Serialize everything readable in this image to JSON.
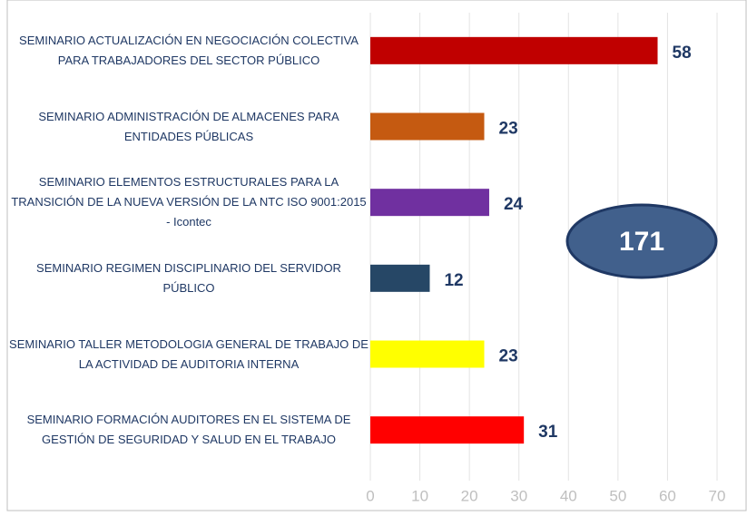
{
  "chart_data": {
    "type": "barh",
    "categories": [
      "SEMINARIO ACTUALIZACIÓN EN NEGOCIACIÓN COLECTIVA PARA TRABAJADORES DEL SECTOR PÚBLICO",
      "SEMINARIO ADMINISTRACIÓN DE ALMACENES PARA ENTIDADES PÚBLICAS",
      "SEMINARIO ELEMENTOS ESTRUCTURALES PARA LA TRANSICIÓN DE LA NUEVA VERSIÓN DE LA NTC ISO 9001:2015 - Icontec",
      "SEMINARIO REGIMEN DISCIPLINARIO DEL SERVIDOR PÚBLICO",
      "SEMINARIO TALLER METODOLOGIA GENERAL DE TRABAJO DE LA ACTIVIDAD DE AUDITORIA INTERNA",
      "SEMINARIO FORMACIÓN AUDITORES EN EL SISTEMA DE GESTIÓN DE SEGURIDAD Y SALUD EN EL TRABAJO"
    ],
    "values": [
      58,
      23,
      24,
      12,
      23,
      31
    ],
    "colors": [
      "#c00000",
      "#c55a11",
      "#7030a0",
      "#264766",
      "#ffff00",
      "#ff0000"
    ],
    "xlim": [
      0,
      70
    ],
    "xticks": [
      0,
      10,
      20,
      30,
      40,
      50,
      60,
      70
    ],
    "grid": true,
    "annotation": "171"
  }
}
